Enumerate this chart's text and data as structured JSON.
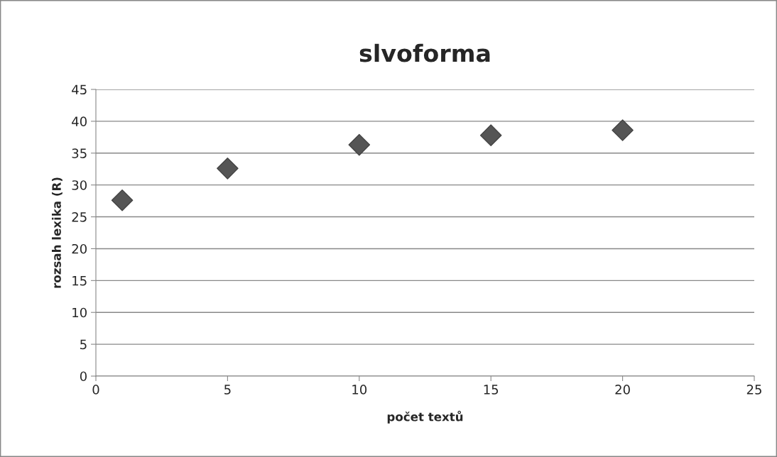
{
  "chart_data": {
    "type": "scatter",
    "title": "slvoforma",
    "xlabel": "počet textů",
    "ylabel": "rozsah lexika (R)",
    "x": [
      1,
      5,
      10,
      15,
      20
    ],
    "series": [
      {
        "color": "#555555",
        "values": [
          27.6,
          32.6,
          36.3,
          37.8,
          38.6
        ]
      }
    ],
    "marker": "diamond",
    "xlim": [
      0,
      25
    ],
    "xticks": [
      0,
      5,
      10,
      15,
      20,
      25
    ],
    "ylim": [
      0,
      45
    ],
    "yticks": [
      0,
      5,
      10,
      15,
      20,
      25,
      30,
      35,
      40,
      45
    ],
    "grid": "y",
    "legend": false
  }
}
